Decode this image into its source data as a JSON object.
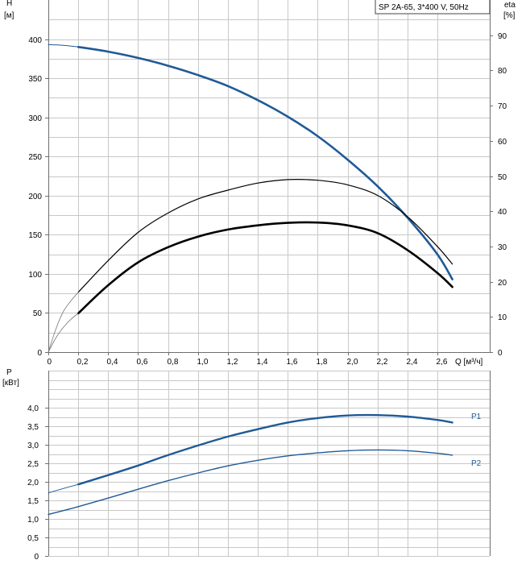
{
  "chart_data": [
    {
      "type": "line",
      "title": "SP 2A-65, 3*400 V, 50Hz",
      "y_left_label": [
        "H",
        "[м]"
      ],
      "y_right_label": [
        "eta",
        "[%]"
      ],
      "x_label": "Q [м³/ч]",
      "x_ticks": [
        "0",
        "0,2",
        "0,4",
        "0,6",
        "0,8",
        "1,0",
        "1,2",
        "1,4",
        "1,6",
        "1,8",
        "2,0",
        "2,2",
        "2,4",
        "2,6"
      ],
      "y_left_ticks": [
        "0",
        "50",
        "100",
        "150",
        "200",
        "250",
        "300",
        "350",
        "400"
      ],
      "y_right_ticks": [
        "0",
        "10",
        "20",
        "30",
        "40",
        "50",
        "60",
        "70",
        "80",
        "90"
      ],
      "xlim": [
        0,
        2.95
      ],
      "ylim_left": [
        0,
        450
      ],
      "ylim_right": [
        0,
        100
      ],
      "grid": true,
      "series": [
        {
          "axis": "left",
          "color": "#1f5a96",
          "style": "head-bold",
          "x": [
            0.2,
            0.4,
            0.6,
            0.8,
            1.0,
            1.2,
            1.4,
            1.6,
            1.8,
            2.0,
            2.2,
            2.4,
            2.6,
            2.7
          ],
          "y": [
            390,
            384,
            376,
            366,
            354,
            340,
            322,
            301,
            276,
            246,
            212,
            172,
            125,
            93
          ]
        },
        {
          "axis": "left",
          "color": "#1f5a96",
          "style": "head-thin",
          "x": [
            0.0,
            0.1,
            0.2
          ],
          "y": [
            393,
            392,
            390
          ]
        },
        {
          "axis": "right",
          "color": "#000000",
          "style": "eta1",
          "x": [
            0.2,
            0.4,
            0.6,
            0.8,
            1.0,
            1.2,
            1.4,
            1.6,
            1.8,
            2.0,
            2.2,
            2.4,
            2.6,
            2.7
          ],
          "y": [
            17,
            26,
            34,
            39.5,
            43.5,
            46,
            48,
            49,
            48.8,
            47.5,
            44.5,
            38.5,
            30,
            25
          ]
        },
        {
          "axis": "right",
          "color": "#000000",
          "style": "eta2",
          "x": [
            0.2,
            0.4,
            0.6,
            0.8,
            1.0,
            1.2,
            1.4,
            1.6,
            1.8,
            2.0,
            2.2,
            2.4,
            2.6,
            2.7
          ],
          "y": [
            11,
            19,
            25.5,
            29.8,
            32.8,
            34.8,
            36,
            36.7,
            36.8,
            36,
            33.8,
            29,
            22.5,
            18.5
          ]
        },
        {
          "axis": "right",
          "color": "#777777",
          "style": "eta-thin",
          "x": [
            0.0,
            0.05,
            0.1,
            0.15,
            0.2
          ],
          "y": [
            0,
            6.5,
            11.5,
            14.5,
            17
          ]
        },
        {
          "axis": "right",
          "color": "#777777",
          "style": "eta-thin",
          "x": [
            0.0,
            0.05,
            0.1,
            0.15,
            0.2
          ],
          "y": [
            0,
            4,
            7,
            9.3,
            11
          ]
        }
      ]
    },
    {
      "type": "line",
      "y_label": [
        "P",
        "[кВт]"
      ],
      "y_ticks": [
        "0",
        "0,5",
        "1,0",
        "1,5",
        "2,0",
        "2,5",
        "3,0",
        "3,5",
        "4,0"
      ],
      "xlim": [
        0,
        2.95
      ],
      "ylim": [
        0,
        5
      ],
      "grid": true,
      "series": [
        {
          "name": "P1",
          "color": "#1f5a96",
          "style": "p-bold",
          "x": [
            0.2,
            0.4,
            0.6,
            0.8,
            1.0,
            1.2,
            1.4,
            1.6,
            1.8,
            2.0,
            2.2,
            2.4,
            2.6,
            2.7
          ],
          "y": [
            1.93,
            2.18,
            2.44,
            2.72,
            2.98,
            3.22,
            3.42,
            3.6,
            3.72,
            3.79,
            3.8,
            3.76,
            3.67,
            3.6
          ]
        },
        {
          "name": "",
          "color": "#1f5a96",
          "style": "p-thin",
          "x": [
            0.0,
            0.1,
            0.2
          ],
          "y": [
            1.7,
            1.82,
            1.93
          ]
        },
        {
          "name": "P2",
          "color": "#1f5a96",
          "style": "p-mid",
          "x": [
            0.0,
            0.2,
            0.4,
            0.6,
            0.8,
            1.0,
            1.2,
            1.4,
            1.6,
            1.8,
            2.0,
            2.2,
            2.4,
            2.6,
            2.7
          ],
          "y": [
            1.12,
            1.33,
            1.56,
            1.8,
            2.03,
            2.24,
            2.43,
            2.58,
            2.7,
            2.78,
            2.84,
            2.86,
            2.84,
            2.77,
            2.72
          ]
        }
      ]
    }
  ]
}
